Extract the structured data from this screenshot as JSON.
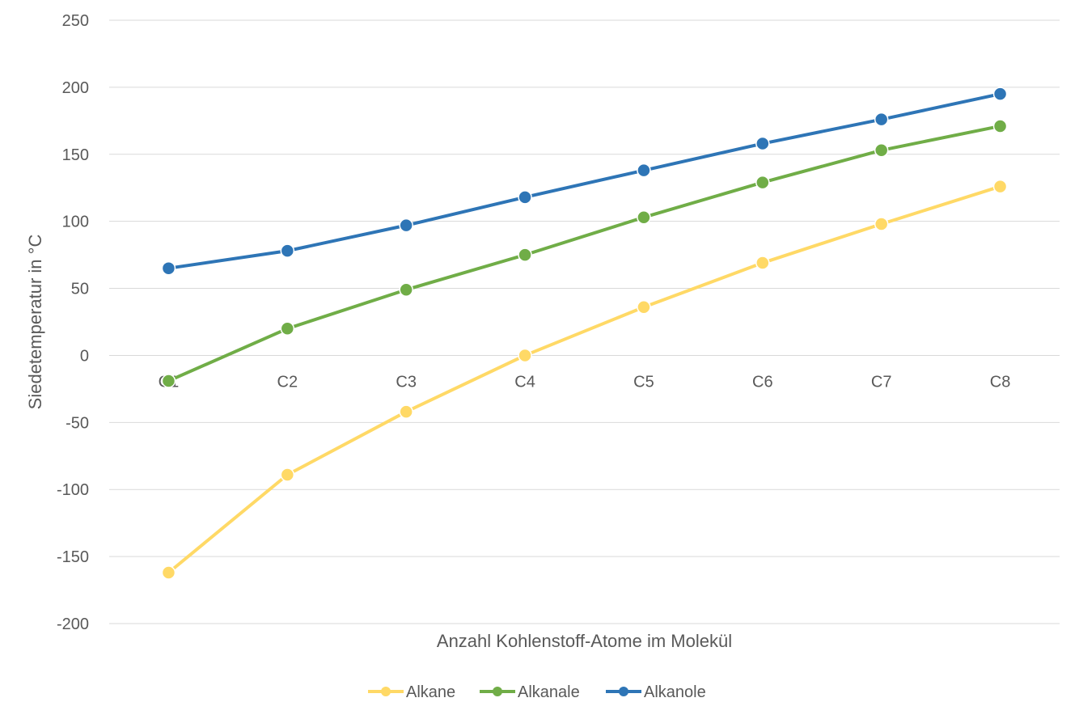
{
  "chart_data": {
    "type": "line",
    "title": "",
    "xlabel": "Anzahl Kohlenstoff-Atome im Molekül",
    "ylabel": "Siedetemperatur in °C",
    "categories": [
      "C1",
      "C2",
      "C3",
      "C4",
      "C5",
      "C6",
      "C7",
      "C8"
    ],
    "ylim": [
      -200,
      250
    ],
    "yticks": [
      250,
      200,
      150,
      100,
      50,
      0,
      -50,
      -100,
      -150,
      -200
    ],
    "grid": true,
    "legend_position": "bottom",
    "series": [
      {
        "name": "Alkane",
        "color": "#ffd966",
        "values": [
          -162,
          -89,
          -42,
          0,
          36,
          69,
          98,
          126
        ]
      },
      {
        "name": "Alkanale",
        "color": "#70ad47",
        "values": [
          -19,
          20,
          49,
          75,
          103,
          129,
          153,
          171
        ]
      },
      {
        "name": "Alkanole",
        "color": "#2e75b6",
        "values": [
          65,
          78,
          97,
          118,
          138,
          158,
          176,
          195
        ]
      }
    ]
  }
}
